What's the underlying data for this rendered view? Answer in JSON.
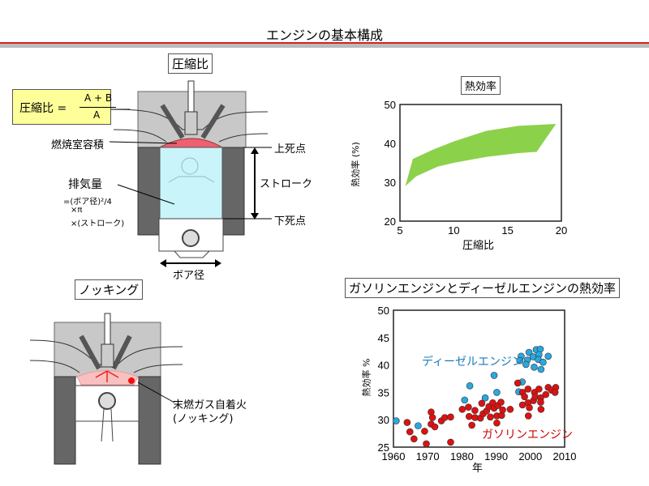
{
  "slide": {
    "title": "エンジンの基本構成",
    "accent": "#d42020"
  },
  "compression": {
    "title": "圧縮比",
    "formula": {
      "lhs": "圧縮比 =",
      "numerator": "A + B",
      "denominator": "A"
    },
    "labels": {
      "combustion_volume": "燃焼室容積",
      "displacement": "排気量",
      "displacement_formula": [
        "=(ボア径)²/4",
        "×π",
        "×(ストローク)"
      ],
      "tdc": "上死点",
      "stroke": "ストローク",
      "bdc": "下死点",
      "bore": "ボア径"
    }
  },
  "knocking": {
    "title": "ノッキング",
    "label_line1": "末燃ガス自着火",
    "label_line2": "(ノッキング)"
  },
  "chart_data": [
    {
      "type": "area",
      "title": "熱効率",
      "xlabel": "圧縮比",
      "ylabel": "熱効率 (%)",
      "xlim": [
        5,
        20
      ],
      "ylim": [
        20,
        50
      ],
      "xticks": [
        5,
        10,
        15,
        20
      ],
      "yticks": [
        20,
        30,
        40,
        50
      ],
      "color": "#8cd14a",
      "upper": [
        [
          6.2,
          36
        ],
        [
          8,
          38.3
        ],
        [
          10,
          40.5
        ],
        [
          13,
          43.2
        ],
        [
          16,
          44.5
        ],
        [
          19.5,
          45
        ]
      ],
      "lower": [
        [
          5.5,
          29
        ],
        [
          6.5,
          31.5
        ],
        [
          8.5,
          34
        ],
        [
          10,
          35
        ],
        [
          13,
          36.5
        ],
        [
          16,
          37.5
        ],
        [
          17.7,
          37.8
        ],
        [
          19.5,
          45
        ]
      ]
    },
    {
      "type": "scatter",
      "title": "ガソリンエンジンとディーゼルエンジンの熱効率",
      "xlabel": "年",
      "ylabel": "熱効率 %",
      "xlim": [
        1960,
        2010
      ],
      "ylim": [
        25,
        50
      ],
      "xticks": [
        1960,
        1970,
        1980,
        1990,
        2000,
        2010
      ],
      "yticks": [
        25,
        30,
        35,
        40,
        45,
        50
      ],
      "series": [
        {
          "name": "ディーゼルエンジン",
          "color": "#29a8e0",
          "points": [
            [
              1960.8,
              29.8
            ],
            [
              1967.2,
              28.9
            ],
            [
              1980.8,
              33.6
            ],
            [
              1982.3,
              36.2
            ],
            [
              1986.8,
              34.0
            ],
            [
              1989.4,
              38.1
            ],
            [
              1990.2,
              35.0
            ],
            [
              1996.6,
              35.1
            ],
            [
              1997.6,
              36.9
            ],
            [
              1997.3,
              41.6
            ],
            [
              1996.9,
              40.8
            ],
            [
              1999.1,
              40.9
            ],
            [
              1998.7,
              40.1
            ],
            [
              1999.6,
              42.3
            ],
            [
              2000.8,
              41.5
            ],
            [
              2001.1,
              39.6
            ],
            [
              2001.7,
              42.8
            ],
            [
              2002.9,
              42.9
            ],
            [
              2002.5,
              41.9
            ],
            [
              2002.3,
              41.0
            ],
            [
              2003.7,
              40.5
            ],
            [
              2003.1,
              39.2
            ],
            [
              2005.2,
              41.6
            ]
          ]
        },
        {
          "name": "ガソリンエンジン",
          "color": "#dd1111",
          "points": [
            [
              1964,
              29.5
            ],
            [
              1964.8,
              27.8
            ],
            [
              1966,
              26.5
            ],
            [
              1969.1,
              27.9
            ],
            [
              1969.6,
              25.6
            ],
            [
              1971,
              31.4
            ],
            [
              1971.4,
              30.4
            ],
            [
              1971,
              29.2
            ],
            [
              1972.1,
              28.7
            ],
            [
              1974,
              29.8
            ],
            [
              1975,
              30.4
            ],
            [
              1976.7,
              30.5
            ],
            [
              1976.7,
              25.9
            ],
            [
              1980.1,
              31.9
            ],
            [
              1981.9,
              32.3
            ],
            [
              1982.1,
              30.6
            ],
            [
              1982.9,
              29.0
            ],
            [
              1983.8,
              31.7
            ],
            [
              1983.8,
              30.4
            ],
            [
              1985.4,
              30.3
            ],
            [
              1985.8,
              33.0
            ],
            [
              1986.2,
              31.1
            ],
            [
              1987.2,
              31.6
            ],
            [
              1987.9,
              32.4
            ],
            [
              1988.3,
              30.5
            ],
            [
              1989,
              33.1
            ],
            [
              1989.4,
              32.1
            ],
            [
              1990.2,
              30.7
            ],
            [
              1990.2,
              29.4
            ],
            [
              1990.5,
              32.6
            ],
            [
              1991.4,
              33.2
            ],
            [
              1991.6,
              30.8
            ],
            [
              1991.9,
              31.8
            ],
            [
              1994.1,
              31.9
            ],
            [
              1996.3,
              36.7
            ],
            [
              1997.7,
              35.0
            ],
            [
              1997.7,
              32.7
            ],
            [
              1998.3,
              34.2
            ],
            [
              1999.3,
              35.6
            ],
            [
              1999.3,
              33.1
            ],
            [
              1999.7,
              32.2
            ],
            [
              1999.4,
              30.7
            ],
            [
              2000.9,
              33.5
            ],
            [
              2001.2,
              35.0
            ],
            [
              2001.4,
              34.2
            ],
            [
              2002.5,
              35.6
            ],
            [
              2003,
              34.0
            ],
            [
              2003,
              33.2
            ],
            [
              2003.1,
              31.9
            ],
            [
              2004.5,
              34.6
            ],
            [
              2005.2,
              35.9
            ],
            [
              2006.2,
              35.4
            ],
            [
              2007.4,
              35.9
            ],
            [
              2007.2,
              35.0
            ]
          ]
        }
      ],
      "label_colors": {
        "diesel": "#1a7ab8",
        "gasoline": "#cc0000"
      }
    }
  ]
}
